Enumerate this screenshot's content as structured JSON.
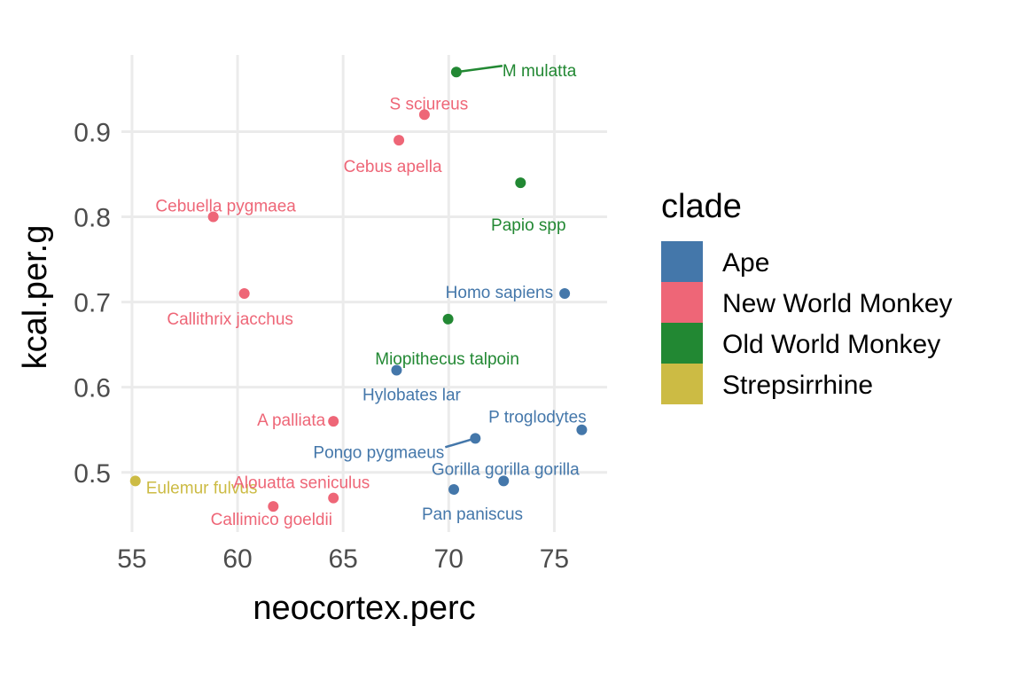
{
  "chart_data": {
    "type": "scatter",
    "xlabel": "neocortex.perc",
    "ylabel": "kcal.per.g",
    "xlim": [
      54.5,
      77.5
    ],
    "ylim": [
      0.43,
      0.99
    ],
    "x_ticks": [
      55,
      60,
      65,
      70,
      75
    ],
    "y_ticks": [
      0.5,
      0.6,
      0.7,
      0.8,
      0.9
    ],
    "y_tick_labels": [
      "0.5",
      "0.6",
      "0.7",
      "0.8",
      "0.9"
    ],
    "grid": true,
    "legend_position": "right",
    "legend_title": "clade",
    "clades": [
      {
        "name": "Ape",
        "color": "#4477aa"
      },
      {
        "name": "New World Monkey",
        "color": "#ee6677"
      },
      {
        "name": "Old World Monkey",
        "color": "#228833"
      },
      {
        "name": "Strepsirrhine",
        "color": "#ccbb44"
      }
    ],
    "points": [
      {
        "label": "Eulemur fulvus",
        "clade": "Strepsirrhine",
        "x": 55.16,
        "y": 0.49
      },
      {
        "label": "Callimico goeldii",
        "clade": "New World Monkey",
        "x": 61.69,
        "y": 0.46
      },
      {
        "label": "Alouatta seniculus",
        "clade": "New World Monkey",
        "x": 64.54,
        "y": 0.47
      },
      {
        "label": "A palliata",
        "clade": "New World Monkey",
        "x": 64.54,
        "y": 0.56
      },
      {
        "label": "Cebuella pygmaea",
        "clade": "New World Monkey",
        "x": 58.85,
        "y": 0.8
      },
      {
        "label": "Callithrix jacchus",
        "clade": "New World Monkey",
        "x": 60.32,
        "y": 0.71
      },
      {
        "label": "Cebus apella",
        "clade": "New World Monkey",
        "x": 67.64,
        "y": 0.89
      },
      {
        "label": "S sciureus",
        "clade": "New World Monkey",
        "x": 68.85,
        "y": 0.92
      },
      {
        "label": "M mulatta",
        "clade": "Old World Monkey",
        "x": 70.36,
        "y": 0.97
      },
      {
        "label": "Papio spp",
        "clade": "Old World Monkey",
        "x": 73.4,
        "y": 0.84
      },
      {
        "label": "Miopithecus talpoin",
        "clade": "Old World Monkey",
        "x": 69.97,
        "y": 0.68
      },
      {
        "label": "Homo sapiens",
        "clade": "Ape",
        "x": 75.49,
        "y": 0.71
      },
      {
        "label": "Hylobates lar",
        "clade": "Ape",
        "x": 67.53,
        "y": 0.62
      },
      {
        "label": "P troglodytes",
        "clade": "Ape",
        "x": 76.3,
        "y": 0.55
      },
      {
        "label": "Pongo pygmaeus",
        "clade": "Ape",
        "x": 71.26,
        "y": 0.54
      },
      {
        "label": "Gorilla gorilla gorilla",
        "clade": "Ape",
        "x": 72.6,
        "y": 0.49
      },
      {
        "label": "Pan paniscus",
        "clade": "Ape",
        "x": 70.24,
        "y": 0.48
      }
    ]
  }
}
